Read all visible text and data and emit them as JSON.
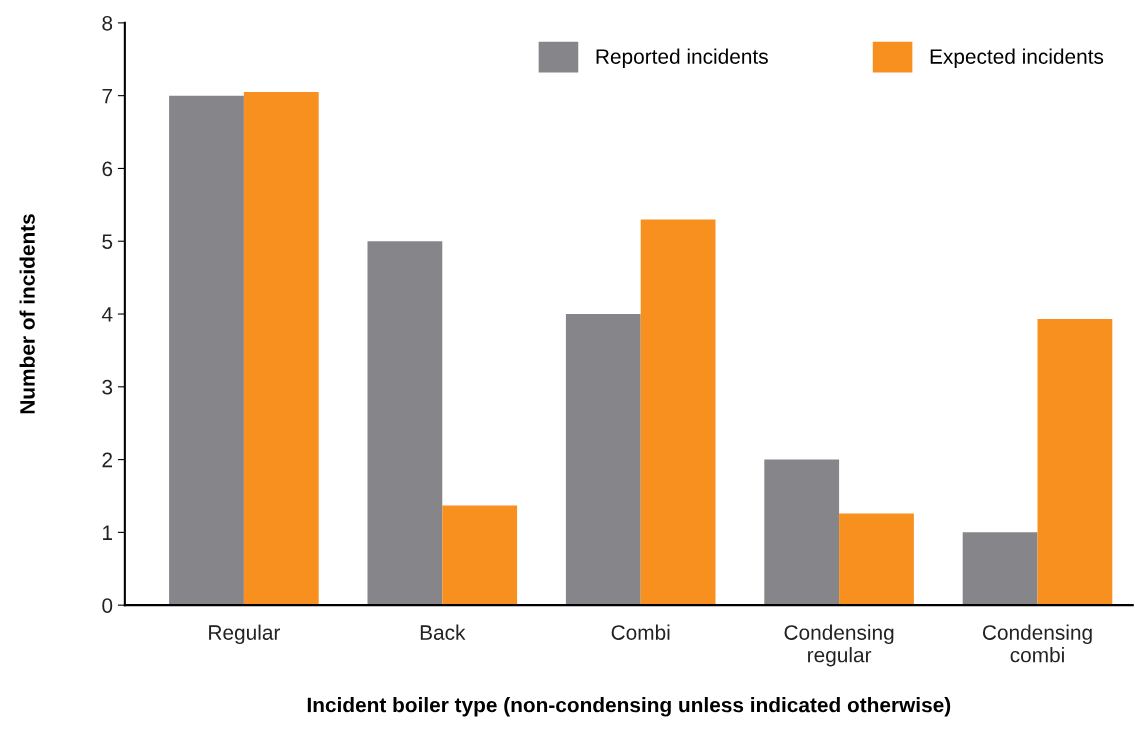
{
  "chart_data": {
    "type": "bar",
    "categories": [
      "Regular",
      "Back",
      "Combi",
      "Condensing\nregular",
      "Condensing\ncombi"
    ],
    "series": [
      {
        "name": "Reported incidents",
        "color": "#86868a",
        "values": [
          7,
          5,
          4,
          2,
          1
        ]
      },
      {
        "name": "Expected incidents",
        "color": "#f7901e",
        "values": [
          7.05,
          1.37,
          5.3,
          1.26,
          3.93
        ]
      }
    ],
    "xlabel": "Incident boiler type (non-condensing unless indicated otherwise)",
    "ylabel": "Number of incidents",
    "ylim": [
      0,
      8
    ],
    "yticks": [
      0,
      1,
      2,
      3,
      4,
      5,
      6,
      7,
      8
    ],
    "legend": "top right",
    "grid": false
  }
}
